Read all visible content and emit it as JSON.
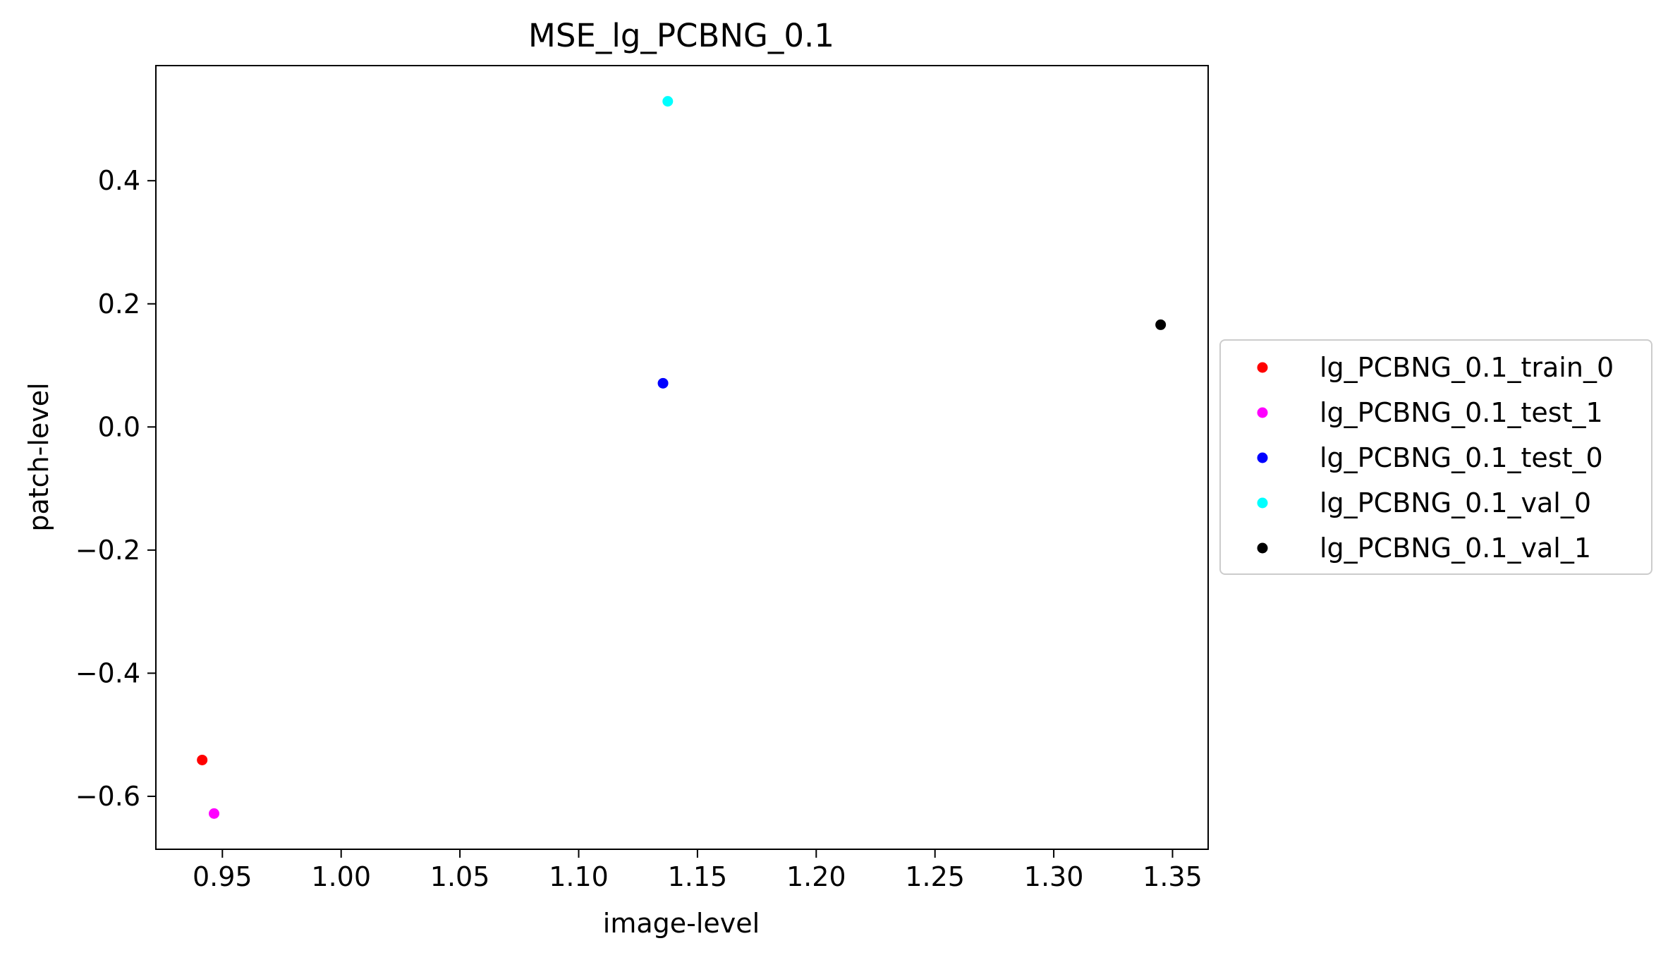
{
  "chart_data": {
    "type": "scatter",
    "title": "MSE_lg_PCBNG_0.1",
    "xlabel": "image-level",
    "ylabel": "patch-level",
    "xlim": [
      0.922,
      1.365
    ],
    "ylim": [
      -0.686,
      0.587
    ],
    "xticks": [
      0.95,
      1.0,
      1.05,
      1.1,
      1.15,
      1.2,
      1.25,
      1.3,
      1.35
    ],
    "xtick_labels": [
      "0.95",
      "1.00",
      "1.05",
      "1.10",
      "1.15",
      "1.20",
      "1.25",
      "1.30",
      "1.35"
    ],
    "yticks": [
      -0.6,
      -0.4,
      -0.2,
      0.0,
      0.2,
      0.4
    ],
    "ytick_labels": [
      "−0.6",
      "−0.4",
      "−0.2",
      "0.0",
      "0.2",
      "0.4"
    ],
    "grid": false,
    "legend_position": "center-left outside right",
    "series": [
      {
        "name": "lg_PCBNG_0.1_train_0",
        "color": "#ff0000",
        "points": [
          {
            "x": 0.9415,
            "y": -0.541
          }
        ]
      },
      {
        "name": "lg_PCBNG_0.1_test_1",
        "color": "#ff00ff",
        "points": [
          {
            "x": 0.9465,
            "y": -0.628
          }
        ]
      },
      {
        "name": "lg_PCBNG_0.1_test_0",
        "color": "#0000ff",
        "points": [
          {
            "x": 1.1355,
            "y": 0.071
          }
        ]
      },
      {
        "name": "lg_PCBNG_0.1_val_0",
        "color": "#00ffff",
        "points": [
          {
            "x": 1.1375,
            "y": 0.529
          }
        ]
      },
      {
        "name": "lg_PCBNG_0.1_val_1",
        "color": "#000000",
        "points": [
          {
            "x": 1.345,
            "y": 0.166
          }
        ]
      }
    ]
  }
}
